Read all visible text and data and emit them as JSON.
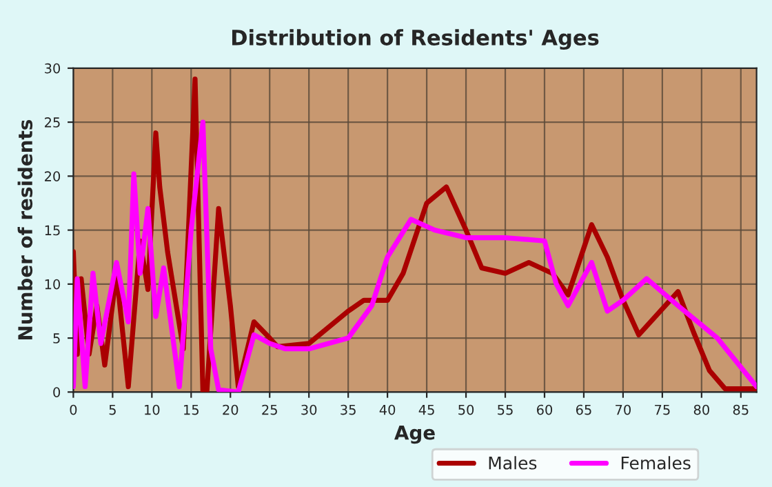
{
  "chart_data": {
    "type": "line",
    "title": "Distribution of Residents' Ages",
    "xlabel": "Age",
    "ylabel": "Number of residents",
    "xlim": [
      0,
      87
    ],
    "xticks": [
      0,
      5,
      10,
      15,
      20,
      25,
      30,
      35,
      40,
      45,
      50,
      55,
      60,
      65,
      70,
      75,
      80,
      85
    ],
    "ylim": [
      0,
      30
    ],
    "yticks": [
      0,
      5,
      10,
      15,
      20,
      25,
      30
    ],
    "grid": true,
    "legend": "bottom",
    "series": [
      {
        "name": "Males",
        "color": "#aa0000",
        "x": [
          0,
          0.5,
          1,
          2,
          3,
          4,
          5.5,
          7,
          8.5,
          9.5,
          10.5,
          11,
          12,
          14,
          15.5,
          16.5,
          17,
          18.5,
          20,
          21,
          23,
          25,
          26,
          30,
          35,
          37,
          40,
          42,
          45,
          47.5,
          50,
          52,
          55,
          58,
          61,
          63,
          66,
          68,
          70,
          72,
          77,
          79,
          81,
          83,
          87
        ],
        "values": [
          13,
          3.5,
          10.5,
          3.5,
          8,
          2.5,
          11,
          0.5,
          14,
          9.5,
          24,
          19,
          13,
          4,
          29,
          0,
          0,
          17,
          8,
          0.5,
          6.5,
          5,
          4.2,
          4.5,
          7.5,
          8.5,
          8.5,
          11,
          17.5,
          19,
          15,
          11.5,
          11,
          12,
          11,
          9,
          15.5,
          12.5,
          8.5,
          5.3,
          9.3,
          5.5,
          2,
          0.3,
          0.3
        ]
      },
      {
        "name": "Females",
        "color": "#ff00ff",
        "x": [
          0,
          0.5,
          1.5,
          2.5,
          3.5,
          5.5,
          7,
          7.7,
          8.5,
          9.5,
          10.5,
          11.5,
          13.5,
          15,
          16.5,
          17.5,
          18.5,
          21,
          23,
          25,
          27,
          30,
          35,
          38,
          40,
          43,
          46,
          50,
          55,
          60,
          61.5,
          63,
          66,
          68,
          70,
          73,
          77,
          82,
          87
        ],
        "values": [
          0.5,
          10.5,
          0.5,
          11,
          4.5,
          12,
          6.5,
          20.2,
          11,
          17,
          7,
          11.5,
          0.5,
          15,
          25,
          4,
          0.2,
          0,
          5.3,
          4.5,
          4,
          4,
          5,
          8,
          12.5,
          16,
          15,
          14.3,
          14.3,
          14,
          10,
          8,
          12,
          7.5,
          8.5,
          10.5,
          8,
          5,
          0.5
        ]
      }
    ]
  }
}
